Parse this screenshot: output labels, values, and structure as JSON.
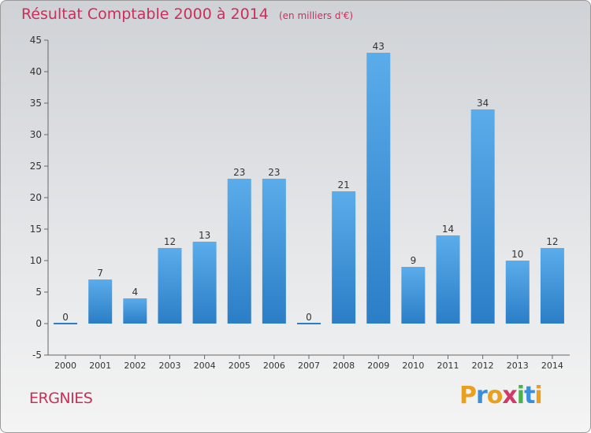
{
  "header": {
    "title": "Résultat Comptable 2000 à 2014",
    "unit": "(en milliers d'€)"
  },
  "footer": {
    "city": "ERGNIES"
  },
  "logo": {
    "letters": [
      "P",
      "r",
      "o",
      "x",
      "i",
      "t",
      "i"
    ],
    "colors": [
      "#e8a020",
      "#3a8fd8",
      "#e8a020",
      "#d03a6a",
      "#4caf50",
      "#3a8fd8",
      "#e8a020"
    ]
  },
  "chart_data": {
    "type": "bar",
    "title": "Résultat Comptable 2000 à 2014",
    "ylabel": "en milliers d'€",
    "categories": [
      "2000",
      "2001",
      "2002",
      "2003",
      "2004",
      "2005",
      "2006",
      "2007",
      "2008",
      "2009",
      "2010",
      "2011",
      "2012",
      "2013",
      "2014"
    ],
    "values": [
      0,
      7,
      4,
      12,
      13,
      23,
      23,
      0,
      21,
      43,
      9,
      14,
      34,
      10,
      12
    ],
    "ylim": [
      -5,
      45
    ],
    "yticks": [
      -5,
      0,
      5,
      10,
      15,
      20,
      25,
      30,
      35,
      40,
      45
    ],
    "grid": false,
    "colors": {
      "bar_top": "#5aacea",
      "bar_bottom": "#2b7ec6",
      "axis": "#555555",
      "text": "#333333"
    }
  }
}
